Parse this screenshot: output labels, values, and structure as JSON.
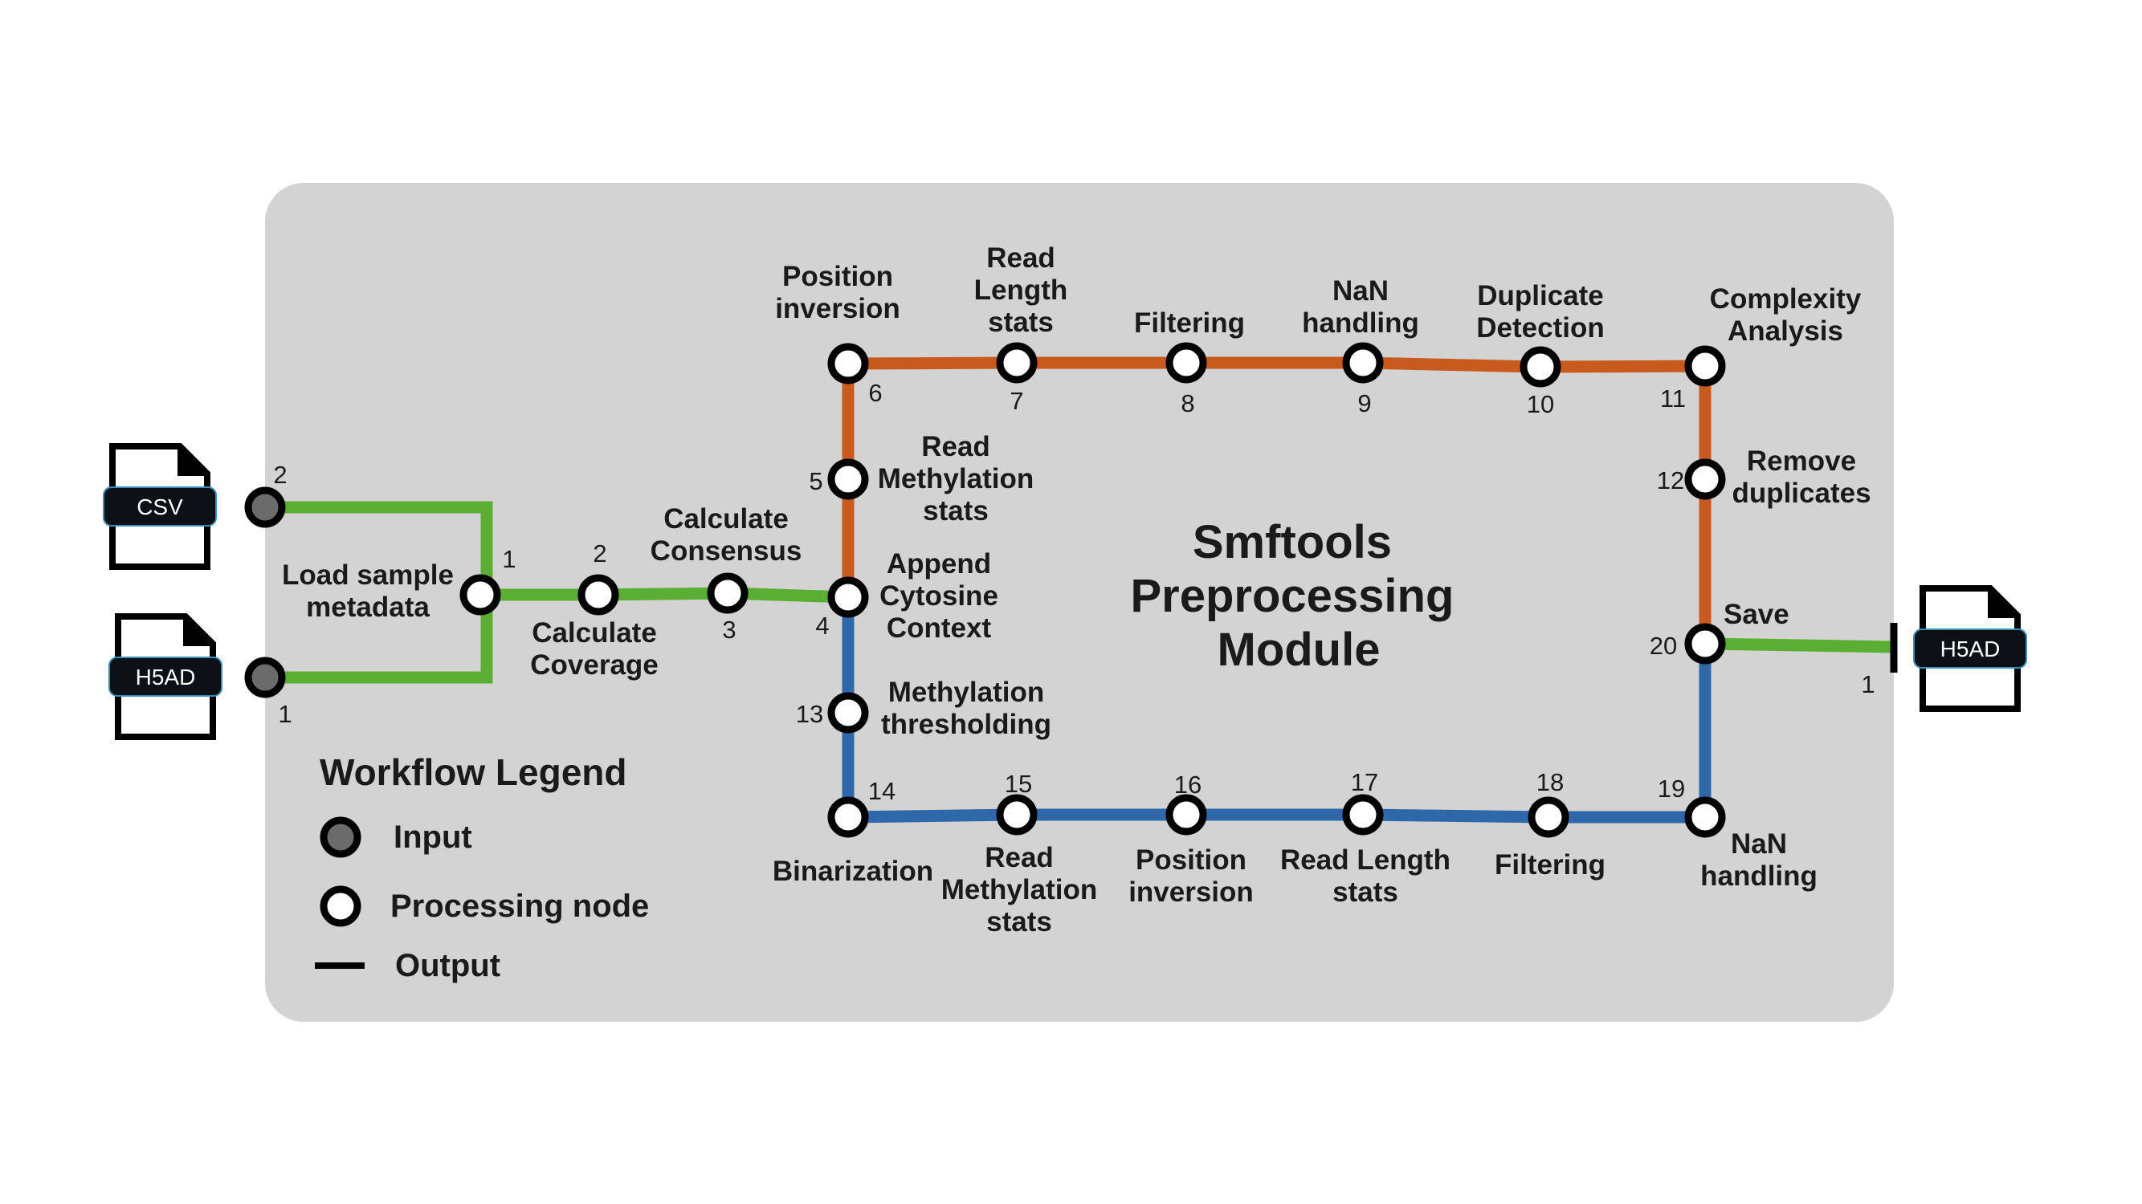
{
  "title": [
    "Smftools",
    "Preprocessing",
    "Module"
  ],
  "colors": {
    "panel": "#d3d3d3",
    "input_route": "#5aae32",
    "upper_route": "#c95a1e",
    "lower_route": "#2f68a8",
    "input_node": "#6b6b6b"
  },
  "inputs": [
    {
      "name": "input-csv",
      "file_label": "CSV",
      "num": "2"
    },
    {
      "name": "input-h5ad",
      "file_label": "H5AD",
      "num": "1"
    }
  ],
  "output": {
    "file_label": "H5AD",
    "num": "1"
  },
  "nodes": [
    {
      "id": "n1",
      "num": "1",
      "label": [
        "Load sample",
        "metadata"
      ]
    },
    {
      "id": "n2",
      "num": "2",
      "label": [
        "Calculate",
        "Coverage"
      ]
    },
    {
      "id": "n3",
      "num": "3",
      "label": [
        "Calculate",
        "Consensus"
      ]
    },
    {
      "id": "n4",
      "num": "4",
      "label": [
        "Append",
        "Cytosine",
        "Context"
      ]
    },
    {
      "id": "n5",
      "num": "5",
      "label": [
        "Read",
        "Methylation",
        "stats"
      ]
    },
    {
      "id": "n6",
      "num": "6",
      "label": [
        "Position",
        "inversion"
      ]
    },
    {
      "id": "n7",
      "num": "7",
      "label": [
        "Read",
        "Length",
        "stats"
      ]
    },
    {
      "id": "n8",
      "num": "8",
      "label": [
        "Filtering"
      ]
    },
    {
      "id": "n9",
      "num": "9",
      "label": [
        "NaN",
        "handling"
      ]
    },
    {
      "id": "n10",
      "num": "10",
      "label": [
        "Duplicate",
        "Detection"
      ]
    },
    {
      "id": "n11",
      "num": "11",
      "label": [
        "Complexity",
        "Analysis"
      ]
    },
    {
      "id": "n12",
      "num": "12",
      "label": [
        "Remove",
        "duplicates"
      ]
    },
    {
      "id": "n20",
      "num": "20",
      "label": [
        "Save"
      ]
    },
    {
      "id": "n13",
      "num": "13",
      "label": [
        "Methylation",
        "thresholding"
      ]
    },
    {
      "id": "n14",
      "num": "14",
      "label": [
        "Binarization"
      ]
    },
    {
      "id": "n15",
      "num": "15",
      "label": [
        "Read",
        "Methylation",
        "stats"
      ]
    },
    {
      "id": "n16",
      "num": "16",
      "label": [
        "Position",
        "inversion"
      ]
    },
    {
      "id": "n17",
      "num": "17",
      "label": [
        "Read Length",
        "stats"
      ]
    },
    {
      "id": "n18",
      "num": "18",
      "label": [
        "Filtering"
      ]
    },
    {
      "id": "n19",
      "num": "19",
      "label": [
        "NaN",
        "handling"
      ]
    }
  ],
  "legend": {
    "title": "Workflow Legend",
    "items": [
      {
        "kind": "input",
        "label": "Input"
      },
      {
        "kind": "processing",
        "label": "Processing node"
      },
      {
        "kind": "output",
        "label": "Output"
      }
    ]
  }
}
